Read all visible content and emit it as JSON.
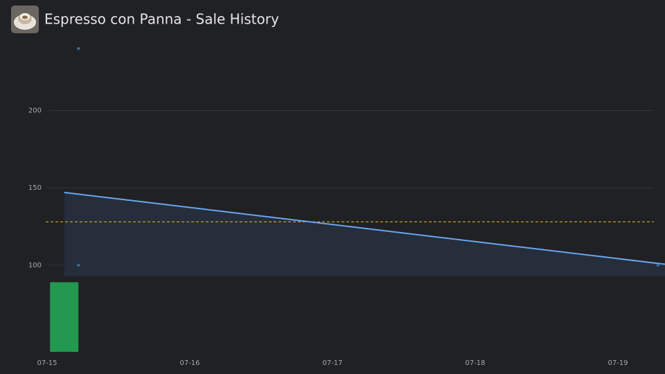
{
  "chart_data": {
    "type": "scatter",
    "title": "Espresso con Panna - Sale History",
    "xlim": [
      0,
      4.33
    ],
    "xticks": [
      {
        "value": 0,
        "label": "07-15"
      },
      {
        "value": 1,
        "label": "07-16"
      },
      {
        "value": 2,
        "label": "07-17"
      },
      {
        "value": 3,
        "label": "07-18"
      },
      {
        "value": 4,
        "label": "07-19"
      }
    ],
    "ylim": [
      44,
      249
    ],
    "yticks": [
      100,
      150,
      200
    ],
    "grid": true,
    "points": {
      "x": [
        0.22,
        0.22,
        4.28
      ],
      "values": [
        240,
        100,
        100
      ],
      "color": "#3d6fb0"
    },
    "trend": {
      "x": [
        0.12,
        4.33
      ],
      "values": [
        147,
        100.6
      ],
      "color": "#6aa6f0",
      "band_floor": 93
    },
    "reference_line": {
      "value": 128,
      "color": "#d8ad2a"
    },
    "bars": {
      "x": [
        0.12
      ],
      "values": [
        89
      ],
      "color": "#22994f"
    }
  }
}
